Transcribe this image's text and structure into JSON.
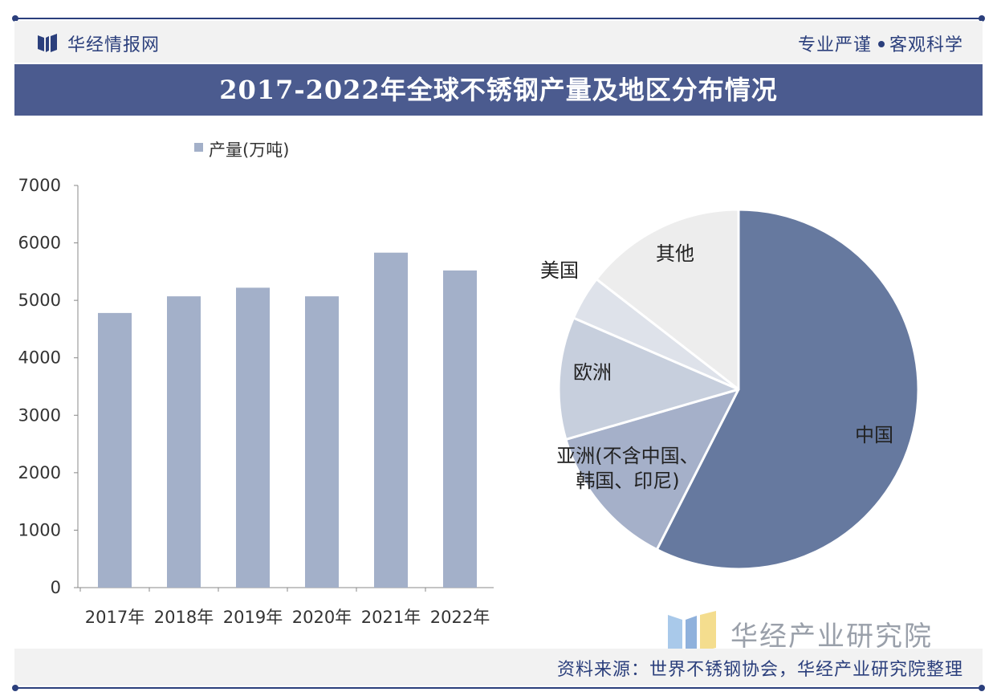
{
  "header": {
    "brand": "华经情报网",
    "slogan_left": "专业严谨",
    "slogan_right": "客观科学"
  },
  "title": "2017-2022年全球不锈钢产量及地区分布情况",
  "footer": {
    "logo_text": "华经产业研究院",
    "source": "资料来源：世界不锈钢协会，华经产业研究院整理"
  },
  "colors": {
    "navy": "#2b3f7c",
    "title_bg": "#4b5b8f",
    "bar": "#a3b0c9",
    "pie": [
      "#66799f",
      "#a5b0c9",
      "#c7cfdd",
      "#dee2ea",
      "#ededed"
    ]
  },
  "chart_data": [
    {
      "type": "bar",
      "title": "",
      "legend": "产量(万吨)",
      "categories": [
        "2017年",
        "2018年",
        "2019年",
        "2020年",
        "2021年",
        "2022年"
      ],
      "values": [
        4780,
        5070,
        5220,
        5070,
        5830,
        5520
      ],
      "yticks": [
        0,
        1000,
        2000,
        3000,
        4000,
        5000,
        6000,
        7000
      ],
      "ylim": [
        0,
        7000
      ],
      "xlabel": "",
      "ylabel": ""
    },
    {
      "type": "pie",
      "labels": [
        "中国",
        "亚洲(不含中国、韩国、印尼)",
        "欧洲",
        "美国",
        "其他"
      ],
      "label_lines": [
        [
          "中国"
        ],
        [
          "亚洲(不含中国、",
          "韩国、印尼)"
        ],
        [
          "欧洲"
        ],
        [
          "美国"
        ],
        [
          "其他"
        ]
      ],
      "values": [
        57.5,
        13.0,
        11.0,
        4.0,
        14.5
      ],
      "unit": "%"
    }
  ]
}
